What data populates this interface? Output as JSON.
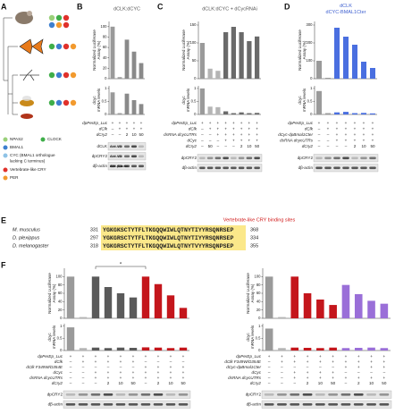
{
  "panel_a": {
    "letter": "A",
    "legend": [
      {
        "label": [
          "NPAS2"
        ],
        "color": "#9ad07a"
      },
      {
        "label": [
          "CLOCK"
        ],
        "color": "#3fae49"
      },
      {
        "label": [
          "BMAL1"
        ],
        "color": "#3d7fcf"
      },
      {
        "label": [
          "CYC (BMAL1 orthologue",
          "lacking C terminus)"
        ],
        "color": "#8fc3e6"
      },
      {
        "label": [
          "Vertebrate-like CRY"
        ],
        "color": "#e0312b"
      },
      {
        "label": [
          "PER"
        ],
        "color": "#f29a2e"
      }
    ]
  },
  "panels": [
    {
      "letter": "B",
      "title": "dCLK:dCYC",
      "title_color": "#555555",
      "colors": [
        "#9a9a9a",
        "#9a9a9a",
        "#8a8a8a",
        "#8a8a8a",
        "#8a8a8a"
      ],
      "luc": {
        "ylabel": [
          "Normalized Luciferase",
          "Assay (%)"
        ],
        "ylim": [
          0,
          110
        ],
        "yticks": [
          0,
          20,
          40,
          60,
          80,
          100
        ],
        "values": [
          100,
          3,
          75,
          52,
          30
        ]
      },
      "mrna": {
        "ylabel": [
          "dcyc",
          "mRNA levels"
        ],
        "ylim": [
          0,
          1.1
        ],
        "yticks": [
          0,
          0.5,
          1
        ],
        "values": [
          0.85,
          0.05,
          0.8,
          0.55,
          0.4
        ]
      },
      "rows": [
        {
          "label": "dpPerEp_Luc",
          "cells": [
            "+",
            "+",
            "+",
            "+",
            "+"
          ]
        },
        {
          "label": "dClk",
          "cells": [
            "–",
            "+",
            "+",
            "+",
            "+"
          ]
        },
        {
          "label": "dCry2",
          "cells": [
            "–",
            "–",
            "2",
            "10",
            "50"
          ]
        }
      ],
      "blots": [
        {
          "label": "dCLK",
          "antibody": "Anti-V5"
        },
        {
          "label": "dpCRY2",
          "antibody": "Anti-V5"
        },
        {
          "label": "dβ-actin",
          "antibody": "Anti-β-actin"
        }
      ]
    },
    {
      "letter": "C",
      "title": "dCLK:dCYC + dCycRNAi",
      "title_color": "#555555",
      "colors": [
        "#9a9a9a",
        "#b5b5b5",
        "#b5b5b5",
        "#6a6a6a",
        "#6a6a6a",
        "#6a6a6a",
        "#6a6a6a",
        "#6a6a6a"
      ],
      "luc": {
        "ylabel": [
          "Normalized Luciferase",
          "Assay (%)"
        ],
        "ylim": [
          0,
          160
        ],
        "yticks": [
          0,
          50,
          100,
          150
        ],
        "values": [
          100,
          28,
          22,
          130,
          145,
          130,
          105,
          118
        ]
      },
      "mrna": {
        "ylabel": [
          "dcyc",
          "mRNA levels"
        ],
        "ylim": [
          0,
          1.1
        ],
        "yticks": [
          0,
          0.5,
          1
        ],
        "values": [
          1,
          0.3,
          0.28,
          0.12,
          0.05,
          0.08,
          0.05,
          0.06
        ]
      },
      "rows": [
        {
          "label": "dpPerEp_Luc",
          "cells": [
            "+",
            "+",
            "+",
            "+",
            "+",
            "+",
            "+",
            "+"
          ]
        },
        {
          "label": "dClk",
          "cells": [
            "–",
            "+",
            "+",
            "+",
            "+",
            "+",
            "+",
            "+"
          ]
        },
        {
          "label": "dsRNA dcycUTRs",
          "cells": [
            "–",
            "–",
            "+",
            "+",
            "+",
            "+",
            "+",
            "+"
          ]
        },
        {
          "label": "dCyc",
          "cells": [
            "–",
            "–",
            "–",
            "+",
            "+",
            "+",
            "+",
            "+"
          ]
        },
        {
          "label": "dCry2",
          "cells": [
            "–",
            "50",
            "–",
            "–",
            "–",
            "2",
            "10",
            "50"
          ]
        }
      ],
      "blots": [
        {
          "label": "dpCRY2"
        },
        {
          "label": "dβ-actin"
        }
      ]
    },
    {
      "letter": "D",
      "title": [
        "dCLK",
        "dCYC-BMAL1Cter"
      ],
      "title_color": "#3d5fd0",
      "colors": [
        "#9a9a9a",
        "#9a9a9a",
        "#4a6fe0",
        "#4a6fe0",
        "#4a6fe0",
        "#4a6fe0",
        "#4a6fe0"
      ],
      "luc": {
        "ylabel": [
          "Normalized Luciferase",
          "Assay (%)"
        ],
        "ylim": [
          0,
          320
        ],
        "yticks": [
          0,
          100,
          200,
          300
        ],
        "values": [
          100,
          5,
          285,
          235,
          190,
          95,
          60
        ]
      },
      "mrna": {
        "ylabel": [
          "dcyc",
          "mRNA levels"
        ],
        "ylim": [
          0,
          1.1
        ],
        "yticks": [
          0,
          0.5,
          1
        ],
        "values": [
          0.9,
          0.05,
          0.08,
          0.1,
          0.05,
          0.06,
          0.04
        ]
      },
      "rows": [
        {
          "label": "dpPerEp_Luc",
          "cells": [
            "+",
            "+",
            "+",
            "+",
            "+",
            "+",
            "+"
          ]
        },
        {
          "label": "dClk",
          "cells": [
            "–",
            "+",
            "+",
            "+",
            "+",
            "+",
            "+"
          ]
        },
        {
          "label": "dCyc-dpBmal1Cter",
          "cells": [
            "–",
            "–",
            "+",
            "+",
            "+",
            "+",
            "+"
          ]
        },
        {
          "label": "dsRNA dcycUTRs",
          "cells": [
            "–",
            "–",
            "+",
            "+",
            "+",
            "+",
            "+"
          ]
        },
        {
          "label": "dCry2",
          "cells": [
            "–",
            "–",
            "–",
            "–",
            "2",
            "10",
            "50"
          ]
        }
      ],
      "blots": [
        {
          "label": "dpCRY2"
        },
        {
          "label": "dβ-actin"
        }
      ]
    },
    {
      "letter": "F",
      "significance": "*",
      "colors": [
        "#9a9a9a",
        "#b5b5b5",
        "#5a5a5a",
        "#5a5a5a",
        "#5a5a5a",
        "#5a5a5a",
        "#c4161c",
        "#c4161c",
        "#c4161c",
        "#c4161c"
      ],
      "luc": {
        "ylabel": [
          "Normalized Luciferase",
          "Assay (%)"
        ],
        "ylim": [
          0,
          120
        ],
        "yticks": [
          0,
          20,
          40,
          60,
          80,
          100
        ],
        "values": [
          100,
          3,
          100,
          75,
          60,
          50,
          100,
          82,
          55,
          25
        ]
      },
      "mrna": {
        "ylabel": [
          "dcyc",
          "mRNA levels"
        ],
        "ylim": [
          0,
          1.1
        ],
        "yticks": [
          0,
          0.5,
          1
        ],
        "values": [
          0.95,
          0.1,
          0.12,
          0.1,
          0.12,
          0.11,
          0.13,
          0.12,
          0.1,
          0.12
        ]
      },
      "rows": [
        {
          "label": "dpPerEp_Luc",
          "cells": [
            "+",
            "+",
            "+",
            "+",
            "+",
            "+",
            "+",
            "+",
            "+",
            "+"
          ]
        },
        {
          "label": "dClk",
          "cells": [
            "–",
            "+",
            "+",
            "+",
            "+",
            "+",
            "–",
            "–",
            "–",
            "–"
          ]
        },
        {
          "label": "dClk F349W/D354E",
          "cells": [
            "–",
            "–",
            "–",
            "–",
            "–",
            "–",
            "+",
            "+",
            "+",
            "+"
          ]
        },
        {
          "label": "dCyc",
          "cells": [
            "–",
            "–",
            "+",
            "+",
            "+",
            "+",
            "+",
            "+",
            "+",
            "+"
          ]
        },
        {
          "label": "dsRNA dcycUTRs",
          "cells": [
            "–",
            "–",
            "+",
            "+",
            "+",
            "+",
            "+",
            "+",
            "+",
            "+"
          ]
        },
        {
          "label": "dCry2",
          "cells": [
            "–",
            "–",
            "–",
            "2",
            "10",
            "50",
            "–",
            "2",
            "10",
            "50"
          ]
        }
      ],
      "blots": [
        {
          "label": "dpCRY2"
        },
        {
          "label": "dβ-actin"
        }
      ]
    },
    {
      "colors": [
        "#9a9a9a",
        "#b5b5b5",
        "#c4161c",
        "#c4161c",
        "#c4161c",
        "#c4161c",
        "#9a6fd8",
        "#9a6fd8",
        "#9a6fd8",
        "#9a6fd8"
      ],
      "luc": {
        "ylabel": [
          "Normalized Luciferase",
          "Assay (%)"
        ],
        "ylim": [
          0,
          120
        ],
        "yticks": [
          0,
          20,
          40,
          60,
          80,
          100
        ],
        "values": [
          100,
          3,
          100,
          60,
          45,
          32,
          80,
          58,
          42,
          35
        ]
      },
      "mrna": {
        "ylabel": [
          "dcyc",
          "mRNA levels"
        ],
        "ylim": [
          0,
          1.1
        ],
        "yticks": [
          0,
          0.5,
          1
        ],
        "values": [
          0.9,
          0.1,
          0.12,
          0.11,
          0.1,
          0.12,
          0.1,
          0.11,
          0.12,
          0.1
        ]
      },
      "rows": [
        {
          "label": "dpPerEp_Luc",
          "cells": [
            "+",
            "+",
            "+",
            "+",
            "+",
            "+",
            "+",
            "+",
            "+",
            "+"
          ]
        },
        {
          "label": "dClk F349W/D354E",
          "cells": [
            "–",
            "+",
            "+",
            "+",
            "+",
            "+",
            "+",
            "+",
            "+",
            "+"
          ]
        },
        {
          "label": "dCyc-dpBmal1Cter",
          "cells": [
            "–",
            "–",
            "–",
            "–",
            "–",
            "–",
            "+",
            "+",
            "+",
            "+"
          ]
        },
        {
          "label": "dCyc",
          "cells": [
            "–",
            "–",
            "+",
            "+",
            "+",
            "+",
            "–",
            "–",
            "–",
            "–"
          ]
        },
        {
          "label": "dsRNA dcycUTRs",
          "cells": [
            "–",
            "–",
            "+",
            "+",
            "+",
            "+",
            "+",
            "+",
            "+",
            "+"
          ]
        },
        {
          "label": "dCry2",
          "cells": [
            "–",
            "–",
            "–",
            "2",
            "10",
            "50",
            "–",
            "2",
            "10",
            "50"
          ]
        }
      ],
      "blots": [
        {
          "label": "dpCRY2"
        },
        {
          "label": "dβ-actin"
        }
      ]
    }
  ],
  "panel_e": {
    "letter": "E",
    "title": "Vertebrate-like CRY binding sites",
    "rows": [
      {
        "species": "M. musculus",
        "start": 331,
        "sequence": "YGKGKSCTYTFLTKGQQWIWLQTNYTIYYRSQNRSEP",
        "end": 368
      },
      {
        "species": "D. plexippus",
        "start": 297,
        "sequence": "YGKGRSCTYTFLTKGQQWIWLQTNYTIYYRSQNRSEP",
        "end": 334
      },
      {
        "species": "D. melanogaster",
        "start": 318,
        "sequence": "YGKGRSCTYTFLTKGQQWIWLQTNYTVYYRSQNPSEP",
        "end": 355
      }
    ]
  }
}
